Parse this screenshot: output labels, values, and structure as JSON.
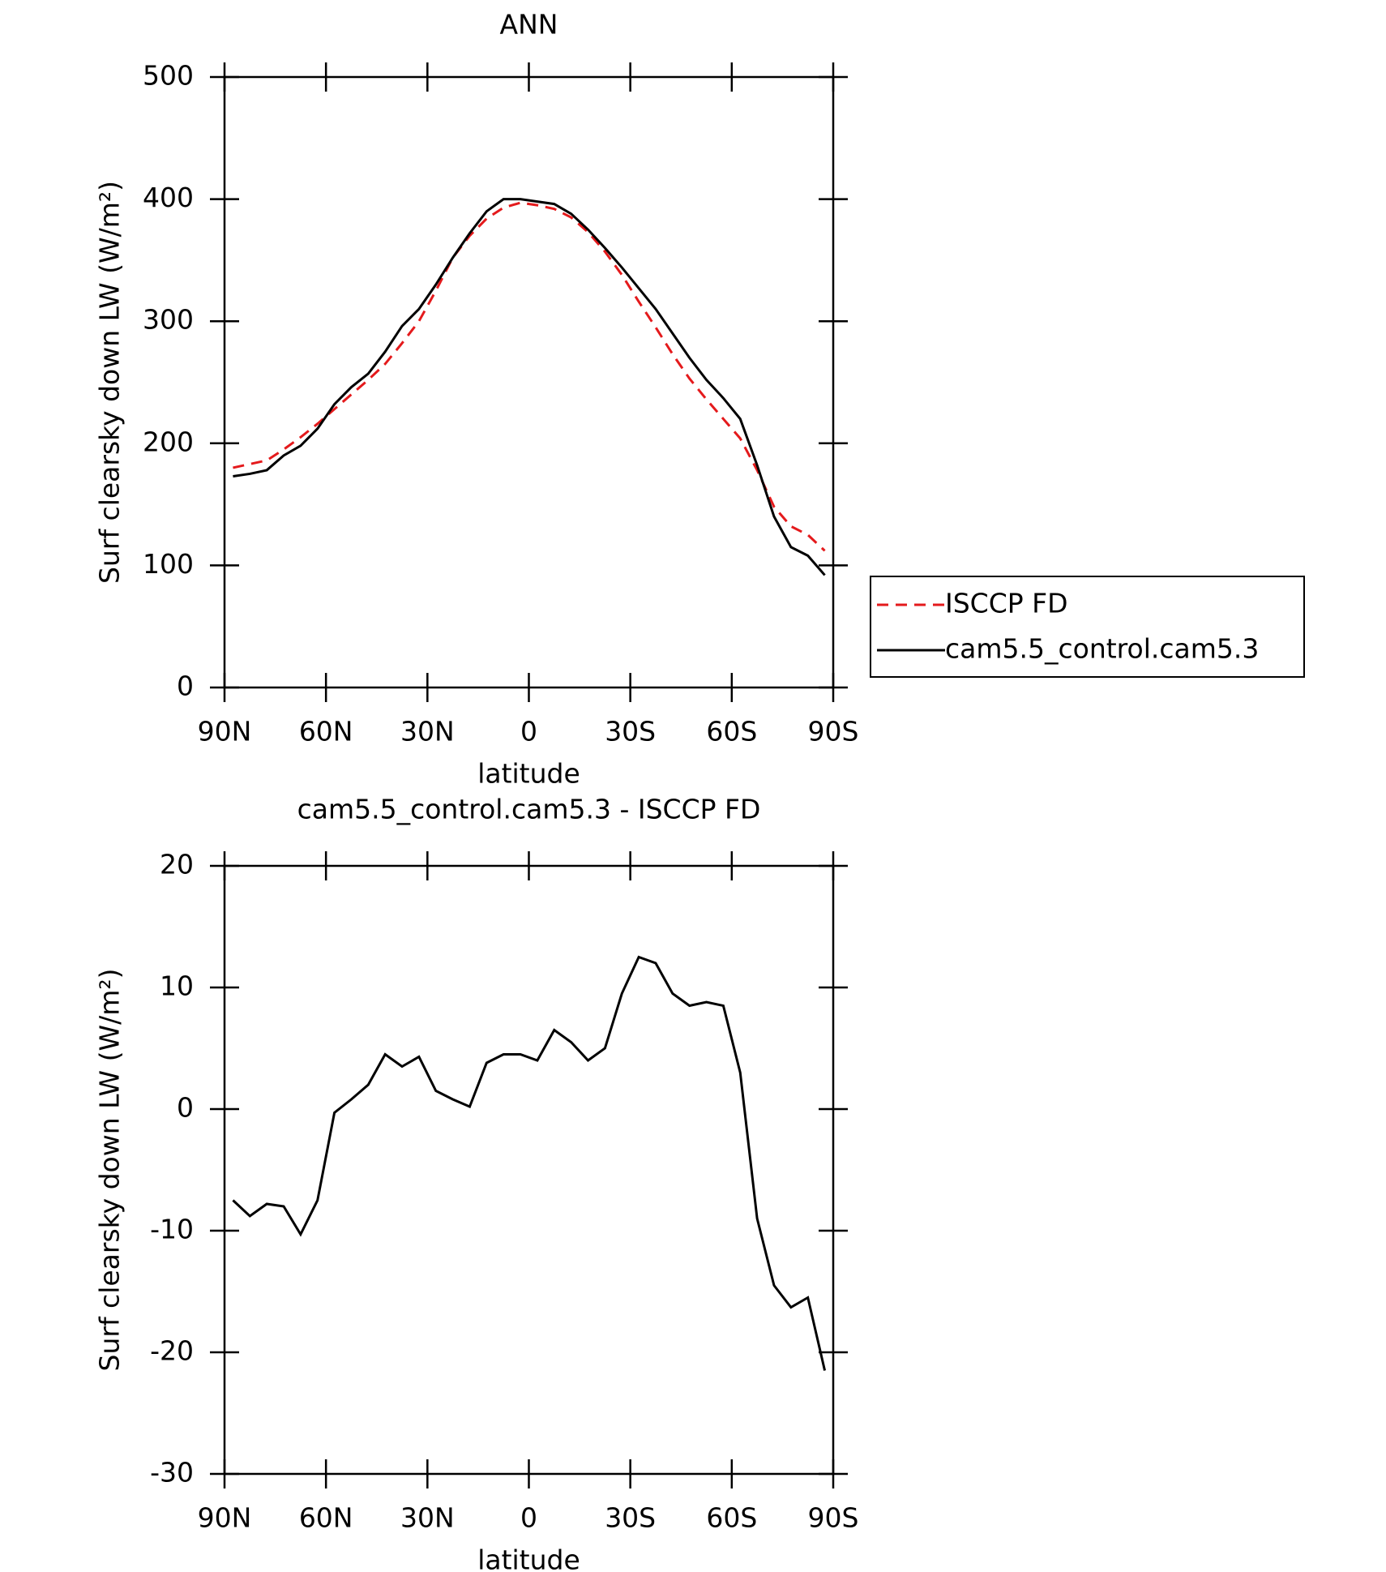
{
  "chart_data": [
    {
      "type": "line",
      "title": "ANN",
      "x_label": "latitude",
      "y_label": "Surf clearsky down LW (W/m²)",
      "x": [
        87.5,
        82.5,
        77.5,
        72.5,
        67.5,
        62.5,
        57.5,
        52.5,
        47.5,
        42.5,
        37.5,
        32.5,
        27.5,
        22.5,
        17.5,
        12.5,
        7.5,
        2.5,
        -2.5,
        -7.5,
        -12.5,
        -17.5,
        -22.5,
        -27.5,
        -32.5,
        -37.5,
        -42.5,
        -47.5,
        -52.5,
        -57.5,
        -62.5,
        -67.5,
        -72.5,
        -77.5,
        -82.5,
        -87.5
      ],
      "series": [
        {
          "name": "ISCCP FD",
          "color": "#e41a1c",
          "linestyle": "dashed",
          "values": [
            180,
            183,
            186,
            195,
            205,
            216,
            228,
            240,
            252,
            265,
            282,
            300,
            325,
            352,
            370,
            384,
            393,
            397,
            395,
            392,
            385,
            373,
            357,
            338,
            316,
            295,
            273,
            253,
            236,
            220,
            204,
            178,
            148,
            132,
            125,
            112
          ]
        },
        {
          "name": "cam5.5_control.cam5.3",
          "color": "#000000",
          "linestyle": "solid",
          "values": [
            173,
            175,
            178,
            190,
            198,
            212,
            232,
            246,
            257,
            275,
            296,
            310,
            330,
            352,
            372,
            390,
            400,
            400,
            398,
            396,
            388,
            375,
            360,
            344,
            327,
            310,
            290,
            270,
            252,
            237,
            220,
            182,
            140,
            115,
            108,
            92
          ]
        }
      ],
      "xlim": [
        90,
        -90
      ],
      "xticks": [
        {
          "value": 90,
          "label": "90N"
        },
        {
          "value": 60,
          "label": "60N"
        },
        {
          "value": 30,
          "label": "30N"
        },
        0,
        {
          "value": -30,
          "label": "30S"
        },
        {
          "value": -60,
          "label": "60S"
        },
        {
          "value": -90,
          "label": "90S"
        }
      ],
      "ylim": [
        0,
        500
      ],
      "yticks": [
        0,
        100,
        200,
        300,
        400,
        500
      ],
      "legend": "right"
    },
    {
      "type": "line",
      "title": "cam5.5_control.cam5.3 - ISCCP FD",
      "x_label": "latitude",
      "y_label": "Surf clearsky down LW (W/m²)",
      "x": [
        87.5,
        82.5,
        77.5,
        72.5,
        67.5,
        62.5,
        57.5,
        52.5,
        47.5,
        42.5,
        37.5,
        32.5,
        27.5,
        22.5,
        17.5,
        12.5,
        7.5,
        2.5,
        -2.5,
        -7.5,
        -12.5,
        -17.5,
        -22.5,
        -27.5,
        -32.5,
        -37.5,
        -42.5,
        -47.5,
        -52.5,
        -57.5,
        -62.5,
        -67.5,
        -72.5,
        -77.5,
        -82.5,
        -87.5
      ],
      "series": [
        {
          "color": "#000000",
          "linestyle": "solid",
          "values": [
            -7.5,
            -8.8,
            -7.8,
            -8,
            -10.3,
            -7.5,
            -0.3,
            0.8,
            2,
            4.5,
            3.5,
            4.3,
            1.5,
            0.8,
            0.2,
            3.8,
            4.5,
            4.5,
            4,
            6.5,
            5.5,
            4,
            5,
            9.5,
            12.5,
            12,
            9.5,
            8.5,
            8.8,
            8.5,
            3,
            -9,
            -14.5,
            -16.3,
            -15.5,
            -21.5
          ]
        }
      ],
      "xlim": [
        90,
        -90
      ],
      "xticks": [
        {
          "value": 90,
          "label": "90N"
        },
        {
          "value": 60,
          "label": "60N"
        },
        {
          "value": 30,
          "label": "30N"
        },
        0,
        {
          "value": -30,
          "label": "30S"
        },
        {
          "value": -60,
          "label": "60S"
        },
        {
          "value": -90,
          "label": "90S"
        }
      ],
      "ylim": [
        -30,
        20
      ],
      "yticks": [
        -30,
        -20,
        -10,
        0,
        10,
        20
      ]
    }
  ]
}
